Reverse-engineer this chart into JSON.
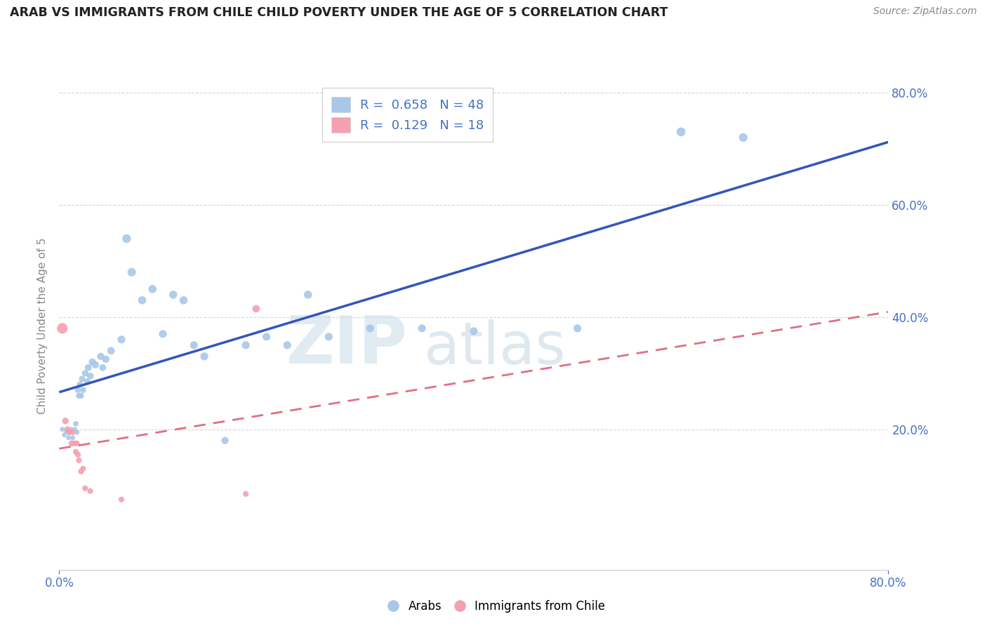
{
  "title": "ARAB VS IMMIGRANTS FROM CHILE CHILD POVERTY UNDER THE AGE OF 5 CORRELATION CHART",
  "source_text": "Source: ZipAtlas.com",
  "ylabel": "Child Poverty Under the Age of 5",
  "xlim": [
    0.0,
    0.8
  ],
  "ylim": [
    -0.05,
    0.82
  ],
  "legend1_label": "R =  0.658   N = 48",
  "legend2_label": "R =  0.129   N = 18",
  "arab_color": "#a8c8e8",
  "chile_color": "#f4a0b0",
  "arab_line_color": "#3355bb",
  "chile_line_color": "#e07080",
  "watermark_zip": "ZIP",
  "watermark_atlas": "atlas",
  "arab_scatter": [
    [
      0.003,
      0.2
    ],
    [
      0.005,
      0.19
    ],
    [
      0.007,
      0.195
    ],
    [
      0.009,
      0.185
    ],
    [
      0.01,
      0.195
    ],
    [
      0.012,
      0.2
    ],
    [
      0.013,
      0.185
    ],
    [
      0.015,
      0.2
    ],
    [
      0.016,
      0.21
    ],
    [
      0.017,
      0.195
    ],
    [
      0.018,
      0.27
    ],
    [
      0.019,
      0.26
    ],
    [
      0.02,
      0.28
    ],
    [
      0.021,
      0.26
    ],
    [
      0.022,
      0.29
    ],
    [
      0.023,
      0.27
    ],
    [
      0.025,
      0.3
    ],
    [
      0.027,
      0.285
    ],
    [
      0.028,
      0.31
    ],
    [
      0.03,
      0.295
    ],
    [
      0.032,
      0.32
    ],
    [
      0.035,
      0.315
    ],
    [
      0.04,
      0.33
    ],
    [
      0.042,
      0.31
    ],
    [
      0.045,
      0.325
    ],
    [
      0.05,
      0.34
    ],
    [
      0.06,
      0.36
    ],
    [
      0.065,
      0.54
    ],
    [
      0.07,
      0.48
    ],
    [
      0.08,
      0.43
    ],
    [
      0.09,
      0.45
    ],
    [
      0.1,
      0.37
    ],
    [
      0.11,
      0.44
    ],
    [
      0.12,
      0.43
    ],
    [
      0.13,
      0.35
    ],
    [
      0.14,
      0.33
    ],
    [
      0.16,
      0.18
    ],
    [
      0.18,
      0.35
    ],
    [
      0.2,
      0.365
    ],
    [
      0.22,
      0.35
    ],
    [
      0.24,
      0.44
    ],
    [
      0.26,
      0.365
    ],
    [
      0.3,
      0.38
    ],
    [
      0.35,
      0.38
    ],
    [
      0.4,
      0.375
    ],
    [
      0.5,
      0.38
    ],
    [
      0.6,
      0.73
    ],
    [
      0.66,
      0.72
    ]
  ],
  "chile_scatter": [
    [
      0.003,
      0.38
    ],
    [
      0.006,
      0.215
    ],
    [
      0.008,
      0.2
    ],
    [
      0.01,
      0.195
    ],
    [
      0.012,
      0.175
    ],
    [
      0.013,
      0.195
    ],
    [
      0.015,
      0.175
    ],
    [
      0.016,
      0.16
    ],
    [
      0.017,
      0.175
    ],
    [
      0.018,
      0.155
    ],
    [
      0.019,
      0.145
    ],
    [
      0.021,
      0.125
    ],
    [
      0.023,
      0.13
    ],
    [
      0.025,
      0.095
    ],
    [
      0.03,
      0.09
    ],
    [
      0.06,
      0.075
    ],
    [
      0.18,
      0.085
    ],
    [
      0.19,
      0.415
    ]
  ],
  "arab_sizes": [
    25,
    25,
    25,
    25,
    25,
    25,
    25,
    25,
    30,
    30,
    35,
    35,
    40,
    35,
    40,
    40,
    45,
    45,
    50,
    50,
    55,
    55,
    55,
    50,
    55,
    60,
    65,
    80,
    75,
    70,
    70,
    65,
    70,
    70,
    65,
    65,
    55,
    65,
    65,
    65,
    70,
    65,
    65,
    65,
    65,
    65,
    85,
    80
  ],
  "chile_sizes": [
    120,
    45,
    40,
    40,
    40,
    35,
    35,
    35,
    35,
    35,
    35,
    35,
    35,
    35,
    35,
    35,
    35,
    60
  ],
  "ytick_positions": [
    0.2,
    0.4,
    0.6,
    0.8
  ],
  "ytick_labels": [
    "20.0%",
    "40.0%",
    "60.0%",
    "80.0%"
  ],
  "xtick_positions": [
    0.0,
    0.8
  ],
  "xtick_labels": [
    "0.0%",
    "80.0%"
  ],
  "grid_color": "#cccccc",
  "tick_color": "#4472c4",
  "title_color": "#222222",
  "source_color": "#888888",
  "ylabel_color": "#888888"
}
